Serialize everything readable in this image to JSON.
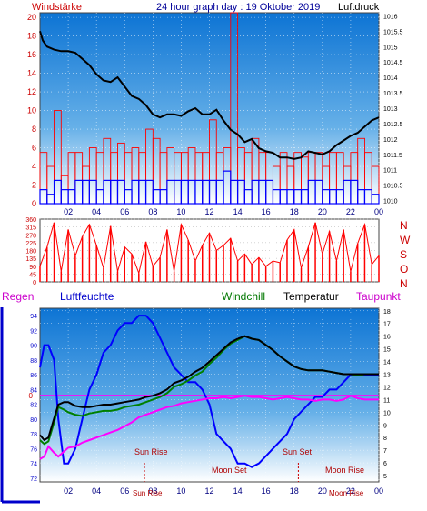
{
  "header": {
    "left_label": "Windstärke",
    "title": "24 hour graph day : 19 Oktober 2019",
    "right_label": "Luftdruck"
  },
  "direction_labels": [
    "N",
    "W",
    "S",
    "O",
    "N"
  ],
  "legend": {
    "regen": "Regen",
    "luftfeuchte": "Luftfeuchte",
    "windchill": "Windchill",
    "temperatur": "Temperatur",
    "taupunkt": "Taupunkt"
  },
  "events": {
    "sun_rise": "Sun Rise",
    "moon_set": "Moon Set",
    "sun_set": "Sun Set",
    "moon_rise": "Moon Rise"
  },
  "colors": {
    "background_top": "#0d74d4",
    "background_bottom": "#ffffff",
    "pressure": "#000000",
    "wind_gust": "#ff0000",
    "wind_avg": "#0000ff",
    "direction": "#ff0000",
    "humidity": "#0000ff",
    "temperature": "#000000",
    "windchill": "#008000",
    "dewpoint": "#ff00ff",
    "left_axis_wind": "#cc0000",
    "right_axis": "#000000",
    "left_axis_humidity": "#0000cc"
  },
  "chart_data": [
    {
      "type": "line",
      "id": "wind_pressure",
      "x_ticks": [
        "02",
        "04",
        "06",
        "08",
        "10",
        "12",
        "14",
        "16",
        "18",
        "20",
        "22",
        "00"
      ],
      "y_left_ticks": [
        "0",
        "2",
        "4",
        "6",
        "8",
        "10",
        "12",
        "14",
        "16",
        "18",
        "20"
      ],
      "y_left_range": [
        0,
        20.5
      ],
      "y_right_ticks": [
        "1010",
        "1010.5",
        "1011",
        "1011.5",
        "1012",
        "1012.5",
        "1013",
        "1013.5",
        "1014",
        "1014.5",
        "1015",
        "1015.5",
        "1016"
      ],
      "y_right_range": [
        1009.9,
        1016.1
      ],
      "x_range": [
        0,
        24
      ],
      "series": [
        {
          "name": "Luftdruck",
          "axis": "right",
          "style": "line",
          "x": [
            0,
            0.2,
            0.5,
            1,
            1.5,
            2,
            2.5,
            3,
            3.5,
            4,
            4.5,
            5,
            5.5,
            6,
            6.5,
            7,
            7.5,
            8,
            8.5,
            9,
            9.5,
            10,
            10.5,
            11,
            11.5,
            12,
            12.5,
            13,
            13.5,
            14,
            14.5,
            15,
            15.5,
            16,
            16.5,
            17,
            17.5,
            18,
            18.5,
            19,
            19.5,
            20,
            20.5,
            21,
            21.5,
            22,
            22.5,
            23,
            23.5,
            24
          ],
          "y": [
            1015.5,
            1015.2,
            1015.0,
            1014.9,
            1014.85,
            1014.85,
            1014.8,
            1014.6,
            1014.4,
            1014.1,
            1013.9,
            1013.85,
            1014.0,
            1013.7,
            1013.4,
            1013.3,
            1013.1,
            1012.8,
            1012.7,
            1012.8,
            1012.8,
            1012.75,
            1012.9,
            1013.0,
            1012.8,
            1012.8,
            1012.95,
            1012.6,
            1012.3,
            1012.15,
            1011.9,
            1012.0,
            1011.7,
            1011.6,
            1011.55,
            1011.4,
            1011.4,
            1011.35,
            1011.4,
            1011.6,
            1011.55,
            1011.5,
            1011.6,
            1011.8,
            1011.95,
            1012.1,
            1012.2,
            1012.4,
            1012.6,
            1012.7
          ]
        },
        {
          "name": "Windböen",
          "axis": "left",
          "style": "bars",
          "x": [
            0,
            0.5,
            1,
            1.5,
            2,
            2.5,
            3,
            3.5,
            4,
            4.5,
            5,
            5.5,
            6,
            6.5,
            7,
            7.5,
            8,
            8.5,
            9,
            9.5,
            10,
            10.5,
            11,
            11.5,
            12,
            12.5,
            13,
            13.5,
            14,
            14.5,
            15,
            15.5,
            16,
            16.5,
            17,
            17.5,
            18,
            18.5,
            19,
            19.5,
            20,
            20.5,
            21,
            21.5,
            22,
            22.5,
            23,
            23.5
          ],
          "y": [
            5.5,
            4,
            10,
            3,
            5.5,
            5.5,
            4,
            6,
            5.5,
            7,
            5.5,
            6.5,
            5.5,
            6,
            5.5,
            8,
            7,
            5.5,
            6,
            5.5,
            5.5,
            6,
            5.5,
            5.5,
            9,
            5.5,
            6,
            20.5,
            6,
            5.5,
            7,
            5.5,
            5.5,
            4,
            5.5,
            4,
            5.5,
            5,
            5.5,
            5.5,
            4,
            5.5,
            5.5,
            4,
            5.5,
            7,
            5.5,
            4
          ]
        },
        {
          "name": "Windmittel",
          "axis": "left",
          "style": "bars",
          "x": [
            0,
            0.5,
            1,
            1.5,
            2,
            2.5,
            3,
            3.5,
            4,
            4.5,
            5,
            5.5,
            6,
            6.5,
            7,
            7.5,
            8,
            8.5,
            9,
            9.5,
            10,
            10.5,
            11,
            11.5,
            12,
            12.5,
            13,
            13.5,
            14,
            14.5,
            15,
            15.5,
            16,
            16.5,
            17,
            17.5,
            18,
            18.5,
            19,
            19.5,
            20,
            20.5,
            21,
            21.5,
            22,
            22.5,
            23,
            23.5
          ],
          "y": [
            1.5,
            1,
            2.5,
            1.5,
            1.5,
            2.5,
            2.5,
            2.5,
            1.5,
            2.5,
            2.5,
            2.5,
            1.5,
            2.5,
            2.5,
            2.5,
            1.5,
            1.5,
            2.5,
            2.5,
            2.5,
            2.5,
            2.5,
            2.5,
            2.5,
            2.5,
            3.5,
            2.5,
            2.5,
            1.5,
            2.5,
            2.5,
            2.5,
            1.5,
            1.5,
            1.5,
            1.5,
            1.5,
            2.5,
            2.5,
            1.5,
            1.5,
            1.5,
            2.5,
            2.5,
            1.5,
            1.5,
            1
          ]
        }
      ]
    },
    {
      "type": "line",
      "id": "wind_direction",
      "x_range": [
        0,
        24
      ],
      "y_ticks": [
        "0",
        "45",
        "90",
        "135",
        "180",
        "225",
        "270",
        "315",
        "360"
      ],
      "y_range": [
        0,
        360
      ],
      "series": [
        {
          "name": "Windrichtung",
          "x": [
            0,
            0.5,
            1,
            1.5,
            2,
            2.5,
            3,
            3.5,
            4,
            4.5,
            5,
            5.5,
            6,
            6.5,
            7,
            7.5,
            8,
            8.5,
            9,
            9.5,
            10,
            10.5,
            11,
            11.5,
            12,
            12.5,
            13,
            13.5,
            14,
            14.5,
            15,
            15.5,
            16,
            16.5,
            17,
            17.5,
            18,
            18.5,
            19,
            19.5,
            20,
            20.5,
            21,
            21.5,
            22,
            22.5,
            23,
            23.5,
            24
          ],
          "y": [
            90,
            200,
            340,
            60,
            300,
            150,
            260,
            330,
            210,
            80,
            320,
            60,
            200,
            160,
            50,
            230,
            90,
            140,
            300,
            60,
            330,
            240,
            120,
            210,
            280,
            180,
            210,
            250,
            120,
            160,
            100,
            140,
            90,
            120,
            110,
            240,
            300,
            80,
            200,
            340,
            160,
            290,
            120,
            300,
            60,
            220,
            330,
            100,
            150
          ]
        }
      ]
    },
    {
      "type": "line",
      "id": "temp_humidity",
      "x_range": [
        0,
        24
      ],
      "y_left_ticks": [
        "72",
        "74",
        "76",
        "78",
        "80",
        "82",
        "84",
        "86",
        "88",
        "90",
        "92",
        "94"
      ],
      "y_left_range": [
        71.5,
        95
      ],
      "y_right_ticks": [
        "5",
        "6",
        "7",
        "8",
        "9",
        "10",
        "11",
        "12",
        "13",
        "14",
        "15",
        "16",
        "17",
        "18"
      ],
      "y_right_range": [
        4.5,
        18.2
      ],
      "markers": [
        "Sun Rise",
        "Moon Set",
        "Sun Set",
        "Moon Rise"
      ],
      "series": [
        {
          "name": "Luftfeuchte",
          "axis": "left",
          "x": [
            0,
            0.3,
            0.6,
            1.0,
            1.3,
            1.7,
            2.0,
            2.5,
            3,
            3.5,
            4,
            4.5,
            5,
            5.5,
            6,
            6.5,
            7,
            7.5,
            8,
            8.5,
            9,
            9.5,
            10,
            10.5,
            11,
            11.5,
            12,
            12.5,
            13,
            13.5,
            14,
            14.5,
            15,
            15.5,
            16,
            16.5,
            17,
            17.5,
            18,
            18.5,
            19,
            19.5,
            20,
            20.5,
            21,
            21.5,
            22,
            22.5,
            23,
            23.5,
            24
          ],
          "y": [
            87,
            90,
            90,
            88,
            80,
            74,
            74,
            76,
            80,
            84,
            86,
            89,
            90,
            92,
            93,
            93,
            94,
            94,
            93,
            91,
            89,
            87,
            86,
            85,
            85,
            84,
            82,
            78,
            77,
            76,
            74,
            74,
            73.5,
            74,
            75,
            76,
            77,
            78,
            80,
            81,
            82,
            83,
            83,
            84,
            84,
            85,
            86,
            86,
            86,
            86,
            86
          ]
        },
        {
          "name": "Temperatur",
          "axis": "right",
          "x": [
            0,
            0.3,
            0.6,
            1.0,
            1.3,
            1.7,
            2.0,
            2.5,
            3,
            3.5,
            4,
            4.5,
            5,
            5.5,
            6,
            6.5,
            7,
            7.5,
            8,
            8.5,
            9,
            9.5,
            10,
            10.5,
            11,
            11.5,
            12,
            12.5,
            13,
            13.5,
            14,
            14.5,
            15,
            15.5,
            16,
            16.5,
            17,
            17.5,
            18,
            18.5,
            19,
            19.5,
            20,
            20.5,
            21,
            21.5,
            22,
            22.5,
            23,
            23.5,
            24
          ],
          "y": [
            8.2,
            7.8,
            8.0,
            9.5,
            10.6,
            10.8,
            10.8,
            10.5,
            10.4,
            10.4,
            10.5,
            10.6,
            10.6,
            10.7,
            10.8,
            10.9,
            11.0,
            11.2,
            11.3,
            11.5,
            11.8,
            12.3,
            12.5,
            12.8,
            13.2,
            13.5,
            14.0,
            14.5,
            15.0,
            15.5,
            15.8,
            16.0,
            15.8,
            15.7,
            15.3,
            14.9,
            14.4,
            14.0,
            13.6,
            13.4,
            13.3,
            13.3,
            13.3,
            13.2,
            13.1,
            13.0,
            13.0,
            13.0,
            13.0,
            13.0,
            13.0
          ]
        },
        {
          "name": "Windchill",
          "axis": "right",
          "x": [
            0,
            0.3,
            0.6,
            1.0,
            1.3,
            1.7,
            2.0,
            2.5,
            3,
            3.5,
            4,
            4.5,
            5,
            5.5,
            6,
            6.5,
            7,
            7.5,
            8,
            8.5,
            9,
            9.5,
            10,
            10.5,
            11,
            11.5,
            12,
            12.5,
            13,
            13.5,
            14,
            14.5,
            15,
            15.5,
            16,
            16.5,
            17,
            17.5,
            18,
            18.5,
            19,
            19.5,
            20,
            20.5,
            21,
            21.5,
            22,
            22.5,
            23,
            23.5,
            24
          ],
          "y": [
            7.8,
            7.5,
            7.7,
            9.2,
            10.4,
            10.2,
            10.0,
            9.8,
            9.7,
            9.9,
            10.0,
            10.1,
            10.1,
            10.2,
            10.4,
            10.5,
            10.6,
            10.8,
            11.0,
            11.2,
            11.5,
            12.0,
            12.2,
            12.5,
            12.9,
            13.2,
            13.8,
            14.3,
            14.9,
            15.4,
            15.7,
            16.0,
            15.8,
            15.7,
            15.3,
            14.9,
            14.4,
            14.0,
            13.6,
            13.4,
            13.3,
            13.3,
            13.3,
            13.2,
            13.1,
            13.0,
            13.0,
            12.9,
            13.0,
            13.0,
            13.0
          ]
        },
        {
          "name": "Taupunkt",
          "axis": "right",
          "x": [
            0,
            0.3,
            0.6,
            1.0,
            1.3,
            1.7,
            2.0,
            2.5,
            3,
            3.5,
            4,
            4.5,
            5,
            5.5,
            6,
            6.5,
            7,
            7.5,
            8,
            8.5,
            9,
            9.5,
            10,
            10.5,
            11,
            11.5,
            12,
            12.5,
            13,
            13.5,
            14,
            14.5,
            15,
            15.5,
            16,
            16.5,
            17,
            17.5,
            18,
            18.5,
            19,
            19.5,
            20,
            20.5,
            21,
            21.5,
            22,
            22.5,
            23,
            23.5,
            24
          ],
          "y": [
            6.3,
            6.5,
            7.3,
            6.8,
            6.5,
            6.9,
            7.2,
            7.3,
            7.6,
            7.8,
            8.0,
            8.2,
            8.4,
            8.6,
            8.9,
            9.2,
            9.6,
            9.8,
            10.0,
            10.2,
            10.4,
            10.5,
            10.7,
            10.8,
            10.9,
            11.0,
            11.1,
            11.1,
            11.2,
            11.1,
            11.2,
            11.3,
            11.2,
            11.2,
            11.1,
            11.0,
            11.1,
            11.2,
            11.1,
            11.0,
            11.0,
            10.9,
            11.0,
            11.0,
            10.9,
            11.0,
            11.3,
            11.1,
            11.0,
            11.0,
            11.0
          ]
        },
        {
          "name": "Regen",
          "axis": "left",
          "style": "reference",
          "x": [
            0,
            24
          ],
          "y": [
            83.2,
            83.2
          ]
        }
      ]
    }
  ]
}
